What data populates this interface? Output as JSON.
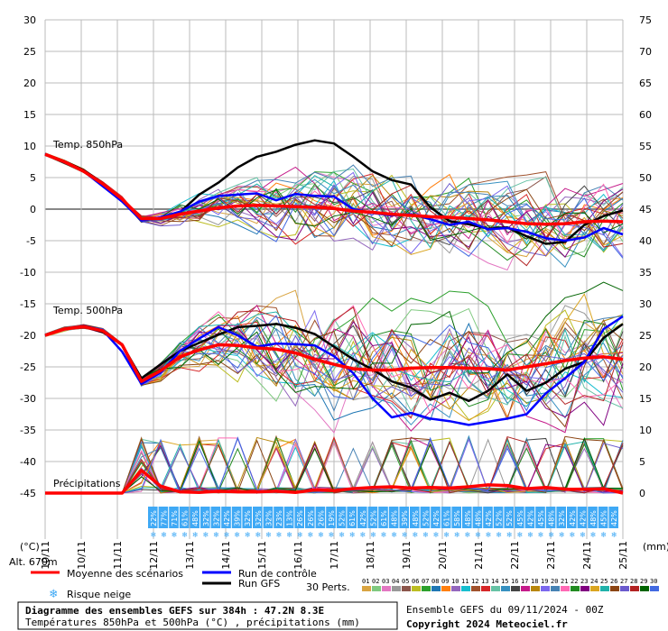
{
  "chart_data": {
    "type": "line",
    "title": "Diagramme des ensembles GEFS sur 384h : 47.2N 8.3E",
    "subtitle": "Températures 850hPa et 500hPa (°C) , précipitations (mm)",
    "left_axis": {
      "unit_label": "(°C)",
      "ticks": [
        30,
        25,
        20,
        15,
        10,
        5,
        0,
        -5,
        -10,
        -15,
        -20,
        -25,
        -30,
        -35,
        -40,
        -45
      ],
      "range": [
        -45,
        30
      ]
    },
    "right_axis": {
      "unit_label": "(mm)",
      "ticks": [
        75,
        70,
        65,
        60,
        55,
        50,
        45,
        40,
        35,
        30,
        25,
        20,
        15,
        10,
        5,
        0
      ],
      "range": [
        0,
        75
      ]
    },
    "x_labels": [
      "10/11",
      "10/11",
      "11/11",
      "12/11",
      "13/11",
      "14/11",
      "15/11",
      "16/11",
      "17/11",
      "18/11",
      "19/11",
      "20/11",
      "21/11",
      "22/11",
      "23/11",
      "24/11",
      "25/11"
    ],
    "panel_labels": {
      "t850": "Temp. 850hPa",
      "t500": "Temp. 500hPa",
      "precip": "Précipitations"
    },
    "altitude_label": "Alt. 670m",
    "snow_risk_pct": [
      "22%",
      "77%",
      "71%",
      "61%",
      "48%",
      "32%",
      "32%",
      "42%",
      "39%",
      "32%",
      "32%",
      "32%",
      "23%",
      "13%",
      "26%",
      "26%",
      "26%",
      "19%",
      "52%",
      "61%",
      "42%",
      "52%",
      "61%",
      "48%",
      "39%",
      "48%",
      "52%",
      "42%",
      "61%",
      "58%",
      "48%",
      "48%",
      "42%",
      "52%",
      "52%",
      "45%",
      "42%",
      "45%",
      "48%",
      "32%",
      "42%",
      "42%",
      "48%",
      "45%",
      "42%"
    ],
    "series": [
      {
        "name": "t850_mean",
        "values": [
          8.7,
          7.5,
          6,
          4,
          1.6,
          -1.5,
          -1.5,
          -0.8,
          -0.3,
          0.2,
          0.5,
          0.6,
          0.5,
          0.4,
          0.3,
          0.1,
          -0.3,
          -0.5,
          -0.8,
          -1,
          -1.2,
          -1.3,
          -1.5,
          -1.7,
          -2,
          -2.3,
          -2.4,
          -2.3,
          -2,
          -1.9,
          -2
        ]
      },
      {
        "name": "t850_control",
        "values": [
          8.7,
          7.4,
          6,
          3.6,
          1.2,
          -1.8,
          -1.3,
          -0.4,
          1.2,
          2.1,
          2.3,
          2.5,
          1.4,
          2.4,
          2.1,
          2,
          0,
          -0.6,
          -1,
          -0.8,
          -1.6,
          -2.5,
          -2,
          -3.2,
          -3,
          -3.6,
          -4.6,
          -5,
          -4.5,
          -3,
          -4
        ]
      },
      {
        "name": "t850_gfs",
        "values": [
          8.7,
          7.6,
          6.2,
          4.1,
          1.6,
          -1.7,
          -1.5,
          -0.5,
          2.3,
          4.2,
          6.6,
          8.3,
          9.1,
          10.2,
          10.9,
          10.4,
          8.3,
          6,
          4.6,
          3.9,
          0.3,
          -1.9,
          -2.4,
          -3.1,
          -2.9,
          -4.3,
          -5.5,
          -5.2,
          -2.5,
          -1.1,
          -0.2
        ]
      },
      {
        "name": "t500_mean",
        "values": [
          -20,
          -19,
          -18.6,
          -19.3,
          -21.5,
          -27.3,
          -25.6,
          -23.4,
          -22.3,
          -21.5,
          -21.6,
          -22,
          -22.2,
          -22.8,
          -23.8,
          -24.6,
          -25.3,
          -25.5,
          -25.5,
          -25.2,
          -25.1,
          -25.1,
          -25.2,
          -25.3,
          -25.5,
          -25,
          -24.5,
          -24,
          -23.6,
          -23.4,
          -23.8
        ]
      },
      {
        "name": "t500_control",
        "values": [
          -20,
          -19,
          -18.5,
          -19.2,
          -22.6,
          -27.7,
          -25.9,
          -22.5,
          -20.5,
          -18.7,
          -20,
          -21.8,
          -21.3,
          -21.4,
          -21.6,
          -23.3,
          -26,
          -30,
          -33,
          -32.3,
          -33.2,
          -33.6,
          -34.2,
          -33.7,
          -33.2,
          -32.5,
          -29.2,
          -26.8,
          -24.2,
          -19,
          -17
        ]
      },
      {
        "name": "t500_gfs",
        "values": [
          -20,
          -19,
          -18.6,
          -19.5,
          -21.5,
          -26.8,
          -24.6,
          -22.5,
          -21.2,
          -19.9,
          -18.7,
          -18.5,
          -18.2,
          -18.8,
          -19.8,
          -21.8,
          -23.8,
          -25.4,
          -27.3,
          -28.3,
          -30.2,
          -29.1,
          -30.4,
          -28.8,
          -26.2,
          -28.8,
          -27.5,
          -25.3,
          -24.2,
          -20.4,
          -18.2
        ]
      },
      {
        "name": "precip_mean",
        "values": [
          0,
          0,
          0,
          0,
          0,
          3.6,
          1.1,
          0.2,
          0.1,
          0.3,
          0.2,
          0.2,
          0.3,
          0.1,
          0.5,
          0.4,
          0.7,
          0.9,
          1,
          0.8,
          0.9,
          0.8,
          1,
          1.3,
          1.2,
          0.7,
          0.9,
          0.6,
          0.6,
          0.7,
          0
        ]
      }
    ],
    "legend": {
      "mean": "Moyenne des scénarios",
      "control": "Run de contrôle",
      "gfs": "Run GFS",
      "snow": "Risque neige",
      "perts": "30 Perts.",
      "pert_ids": [
        "01",
        "02",
        "03",
        "04",
        "05",
        "06",
        "07",
        "08",
        "09",
        "10",
        "11",
        "12",
        "13",
        "14",
        "15",
        "16",
        "17",
        "18",
        "19",
        "20",
        "21",
        "22",
        "23",
        "24",
        "25",
        "26",
        "27",
        "28",
        "29",
        "30"
      ]
    },
    "pert_colors": [
      "#d9a441",
      "#7fc97f",
      "#e377c2",
      "#999999",
      "#8c564b",
      "#bcbd22",
      "#2ca02c",
      "#1f77b4",
      "#ff7f0e",
      "#9467bd",
      "#17becf",
      "#a0522d",
      "#d62728",
      "#66c2a5",
      "#3690c0",
      "#444444",
      "#c51b8a",
      "#b8860b",
      "#7b68ee",
      "#4682b4",
      "#ff69b4",
      "#228b22",
      "#800080",
      "#daa520",
      "#20b2aa",
      "#8b4513",
      "#6a5acd",
      "#b22222",
      "#006400",
      "#4169e1"
    ]
  },
  "footer": {
    "run_label": "Ensemble GEFS du 09/11/2024 - 00Z",
    "copyright": "Copyright 2024 Meteociel.fr"
  },
  "colors": {
    "mean": "#ff0000",
    "control": "#0000ff",
    "gfs": "#000000",
    "snow": "#3fa9f5"
  }
}
